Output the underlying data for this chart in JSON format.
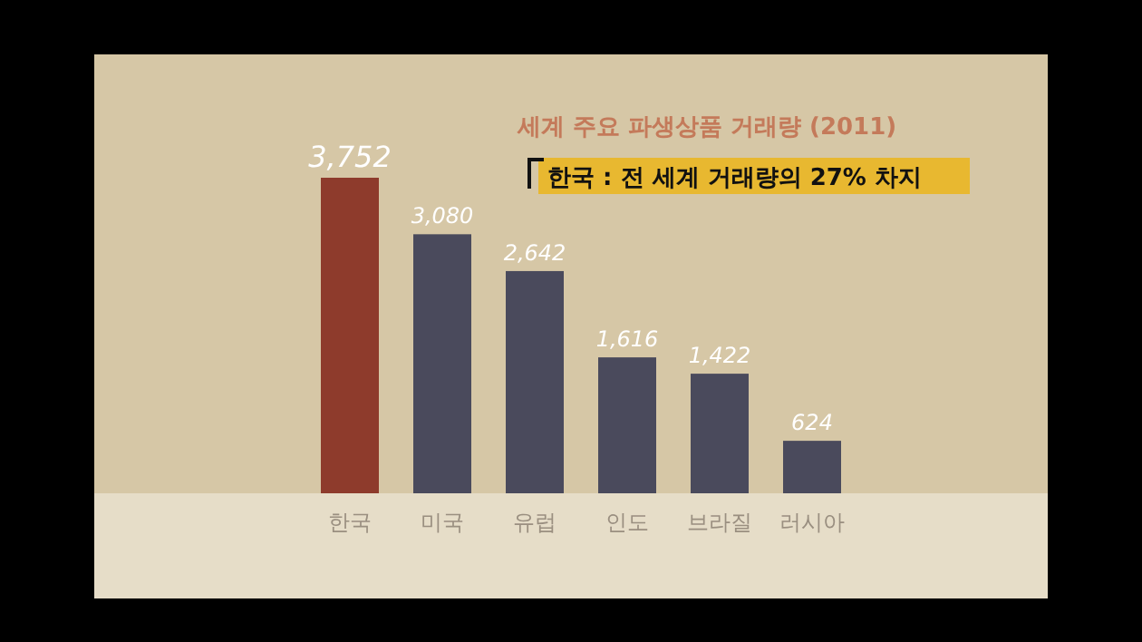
{
  "chart_data": {
    "type": "bar",
    "title": "세계 주요 파생상품 거래량 (2011)",
    "annotations": [
      "한국 : 전 세계 거래량의 27% 차지"
    ],
    "categories": [
      "한국",
      "미국",
      "유럽",
      "인도",
      "브라질",
      "러시아"
    ],
    "values": [
      3752,
      3080,
      2642,
      1616,
      1422,
      624
    ],
    "colors": [
      "#8e3b2c",
      "#4a4a5c",
      "#4a4a5c",
      "#4a4a5c",
      "#4a4a5c",
      "#4a4a5c"
    ],
    "value_labels": [
      "3,752",
      "3,080",
      "2,642",
      "1,616",
      "1,422",
      "624"
    ]
  }
}
